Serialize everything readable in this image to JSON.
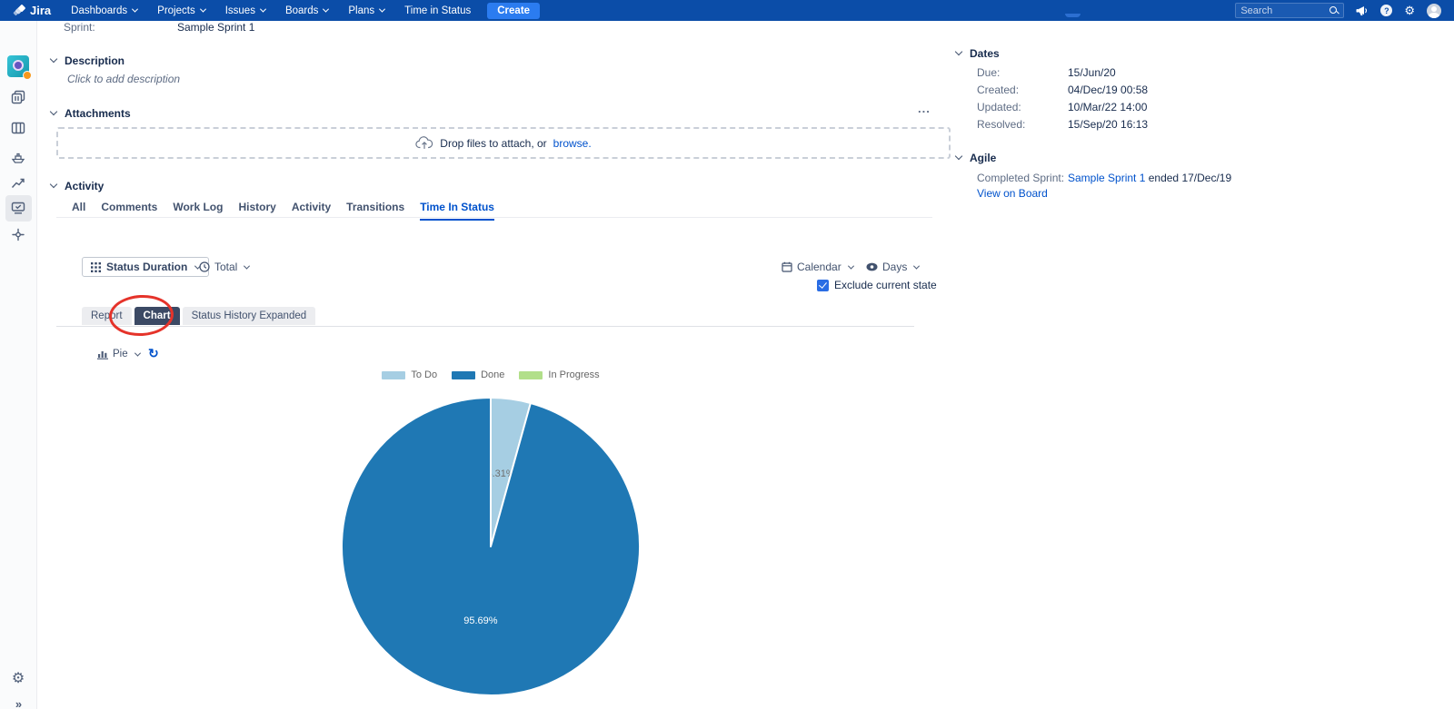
{
  "nav": {
    "brand": "Jira",
    "menus": [
      {
        "label": "Dashboards"
      },
      {
        "label": "Projects"
      },
      {
        "label": "Issues"
      },
      {
        "label": "Boards"
      },
      {
        "label": "Plans"
      },
      {
        "label": "Time in Status"
      }
    ],
    "create_label": "Create",
    "search_placeholder": "Search"
  },
  "issue": {
    "sprint_label": "Sprint:",
    "sprint_value": "Sample Sprint 1",
    "description_title": "Description",
    "description_placeholder": "Click to add description",
    "attachments_title": "Attachments",
    "attachments_more": "...",
    "dropzone_text": "Drop files to attach, or",
    "dropzone_link": "browse.",
    "activity_title": "Activity",
    "activity_tabs": [
      "All",
      "Comments",
      "Work Log",
      "History",
      "Activity",
      "Transitions",
      "Time In Status"
    ],
    "active_activity_tab": "Time In Status"
  },
  "tis": {
    "metric_label": "Status Duration",
    "aggregate_label": "Total",
    "calendar_label": "Calendar",
    "unit_label": "Days",
    "exclude_label": "Exclude current state",
    "exclude_checked": true,
    "view_tabs": [
      "Report",
      "Chart",
      "Status History Expanded"
    ],
    "active_view_tab": "Chart",
    "chart_type_label": "Pie"
  },
  "chart_data": {
    "type": "pie",
    "categories": [
      "To Do",
      "Done",
      "In Progress"
    ],
    "values": [
      4.31,
      95.69,
      0
    ],
    "slice_labels": [
      "4.31%",
      "95.69%",
      ""
    ],
    "colors": [
      "#a6cee3",
      "#1f78b4",
      "#b2df8a"
    ],
    "label_colors": [
      "#6e6e6e",
      "#ffffff",
      "#6e6e6e"
    ],
    "legend_position": "top",
    "unit": "percent",
    "title": ""
  },
  "details": {
    "dates_title": "Dates",
    "dates": [
      {
        "label": "Due:",
        "value": "15/Jun/20"
      },
      {
        "label": "Created:",
        "value": "04/Dec/19 00:58"
      },
      {
        "label": "Updated:",
        "value": "10/Mar/22 14:00"
      },
      {
        "label": "Resolved:",
        "value": "15/Sep/20 16:13"
      }
    ],
    "agile_title": "Agile",
    "completed_sprint_label": "Completed Sprint:",
    "completed_sprint_link": "Sample Sprint 1",
    "completed_sprint_suffix": "ended 17/Dec/19",
    "view_on_board": "View on Board"
  },
  "colors": {
    "nav_bg": "#0b4da8",
    "create_button": "#2b7cf0",
    "link": "#0052cc",
    "active_pill": "#3b4964",
    "annotation_red": "#e5332a",
    "checkbox_blue": "#2a6de4"
  }
}
